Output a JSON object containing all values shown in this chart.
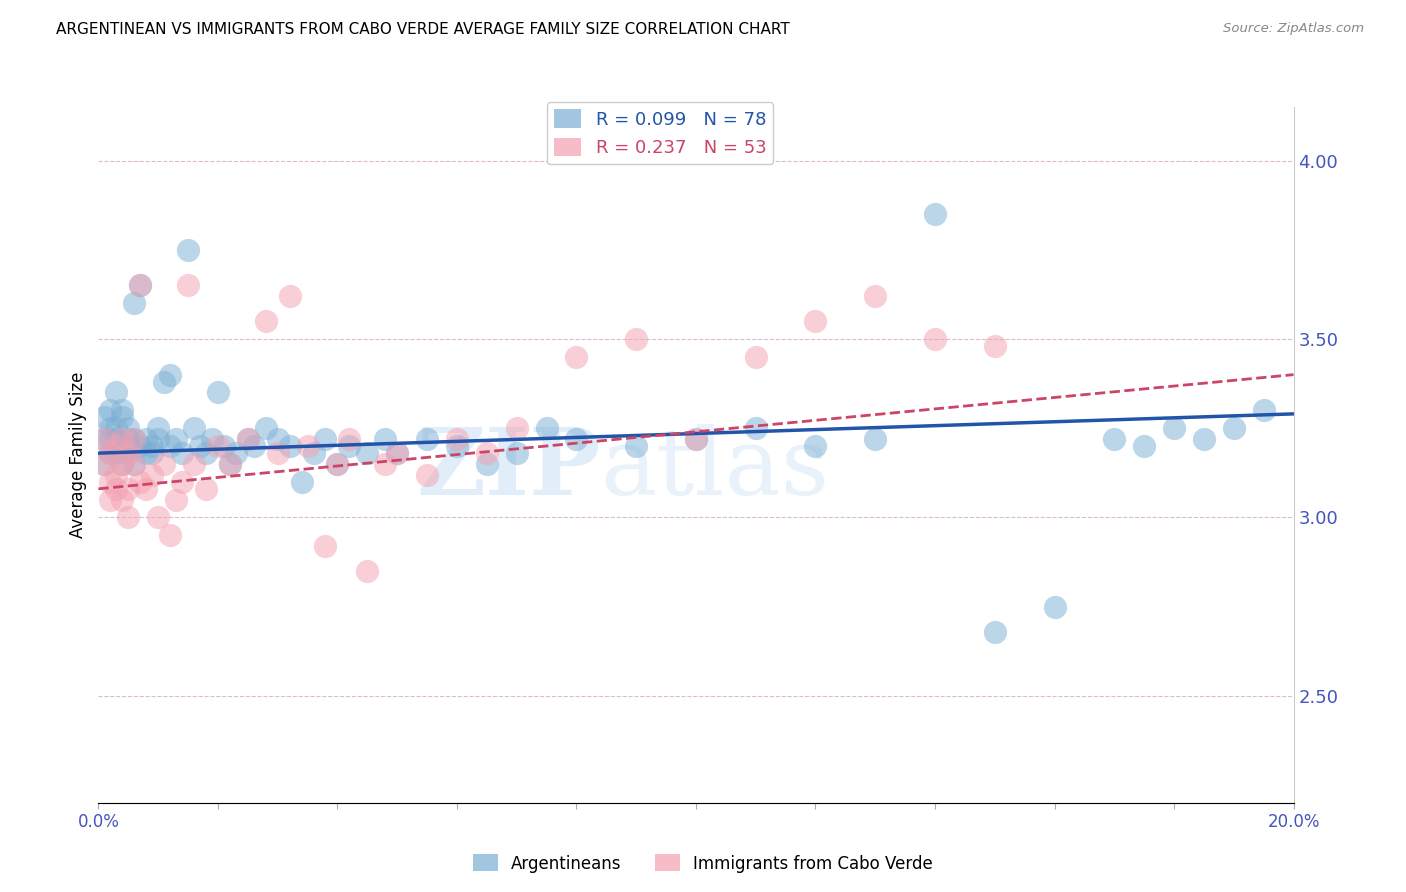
{
  "title": "ARGENTINEAN VS IMMIGRANTS FROM CABO VERDE AVERAGE FAMILY SIZE CORRELATION CHART",
  "source": "Source: ZipAtlas.com",
  "ylabel": "Average Family Size",
  "right_yticks": [
    2.5,
    3.0,
    3.5,
    4.0
  ],
  "blue_color": "#7BAFD4",
  "pink_color": "#F4A0B0",
  "trend_blue": "#2255AA",
  "trend_pink": "#CC4466",
  "blue_R": 0.099,
  "blue_N": 78,
  "pink_R": 0.237,
  "pink_N": 53,
  "xmin": 0.0,
  "xmax": 0.2,
  "ymin": 2.2,
  "ymax": 4.15,
  "blue_intercept": 3.18,
  "blue_slope": 0.55,
  "pink_intercept": 3.08,
  "pink_slope": 1.6,
  "blue_points_x": [
    0.001,
    0.001,
    0.001,
    0.002,
    0.002,
    0.002,
    0.002,
    0.003,
    0.003,
    0.003,
    0.003,
    0.003,
    0.004,
    0.004,
    0.004,
    0.004,
    0.005,
    0.005,
    0.005,
    0.005,
    0.006,
    0.006,
    0.006,
    0.007,
    0.007,
    0.008,
    0.008,
    0.009,
    0.009,
    0.01,
    0.01,
    0.011,
    0.012,
    0.012,
    0.013,
    0.014,
    0.015,
    0.016,
    0.017,
    0.018,
    0.019,
    0.02,
    0.021,
    0.022,
    0.023,
    0.025,
    0.026,
    0.028,
    0.03,
    0.032,
    0.034,
    0.036,
    0.038,
    0.04,
    0.042,
    0.045,
    0.048,
    0.05,
    0.055,
    0.06,
    0.065,
    0.07,
    0.075,
    0.08,
    0.09,
    0.1,
    0.11,
    0.12,
    0.13,
    0.14,
    0.15,
    0.16,
    0.17,
    0.175,
    0.18,
    0.185,
    0.19,
    0.195
  ],
  "blue_points_y": [
    3.22,
    3.28,
    3.15,
    3.3,
    3.18,
    3.22,
    3.25,
    3.2,
    3.35,
    3.18,
    3.25,
    3.22,
    3.3,
    3.15,
    3.2,
    3.28,
    3.22,
    3.18,
    3.25,
    3.2,
    3.6,
    3.15,
    3.22,
    3.65,
    3.2,
    3.18,
    3.22,
    3.2,
    3.18,
    3.25,
    3.22,
    3.38,
    3.4,
    3.2,
    3.22,
    3.18,
    3.75,
    3.25,
    3.2,
    3.18,
    3.22,
    3.35,
    3.2,
    3.15,
    3.18,
    3.22,
    3.2,
    3.25,
    3.22,
    3.2,
    3.1,
    3.18,
    3.22,
    3.15,
    3.2,
    3.18,
    3.22,
    3.18,
    3.22,
    3.2,
    3.15,
    3.18,
    3.25,
    3.22,
    3.2,
    3.22,
    3.25,
    3.2,
    3.22,
    3.85,
    2.68,
    2.75,
    3.22,
    3.2,
    3.25,
    3.22,
    3.25,
    3.3
  ],
  "pink_points_x": [
    0.001,
    0.001,
    0.002,
    0.002,
    0.002,
    0.003,
    0.003,
    0.003,
    0.004,
    0.004,
    0.004,
    0.005,
    0.005,
    0.005,
    0.006,
    0.006,
    0.007,
    0.007,
    0.008,
    0.009,
    0.01,
    0.011,
    0.012,
    0.013,
    0.014,
    0.015,
    0.016,
    0.018,
    0.02,
    0.022,
    0.025,
    0.028,
    0.03,
    0.032,
    0.035,
    0.038,
    0.04,
    0.042,
    0.045,
    0.048,
    0.05,
    0.055,
    0.06,
    0.065,
    0.07,
    0.08,
    0.09,
    0.1,
    0.11,
    0.12,
    0.13,
    0.14,
    0.15
  ],
  "pink_points_y": [
    3.22,
    3.15,
    3.1,
    3.05,
    3.18,
    3.12,
    3.2,
    3.08,
    3.05,
    3.15,
    3.22,
    3.08,
    3.18,
    3.0,
    3.15,
    3.22,
    3.65,
    3.1,
    3.08,
    3.12,
    3.0,
    3.15,
    2.95,
    3.05,
    3.1,
    3.65,
    3.15,
    3.08,
    3.2,
    3.15,
    3.22,
    3.55,
    3.18,
    3.62,
    3.2,
    2.92,
    3.15,
    3.22,
    2.85,
    3.15,
    3.18,
    3.12,
    3.22,
    3.18,
    3.25,
    3.45,
    3.5,
    3.22,
    3.45,
    3.55,
    3.62,
    3.5,
    3.48
  ]
}
